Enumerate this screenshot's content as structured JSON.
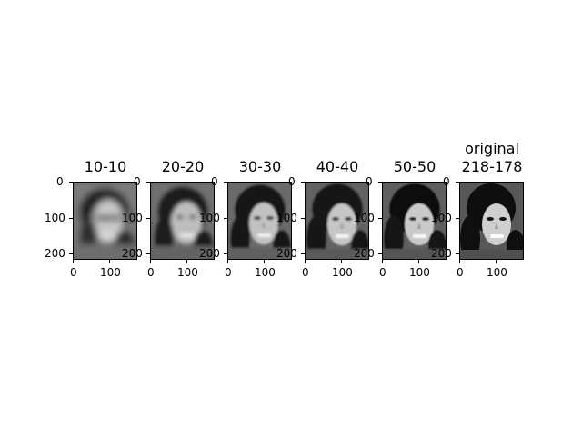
{
  "figure": {
    "panels": [
      {
        "title_line1": "",
        "title_line2": "10-10",
        "y_ticks": [
          "0",
          "100",
          "200"
        ],
        "x_ticks": [
          "0",
          "100"
        ]
      },
      {
        "title_line1": "",
        "title_line2": "20-20",
        "y_ticks": [
          "0",
          "100",
          "200"
        ],
        "x_ticks": [
          "0",
          "100"
        ]
      },
      {
        "title_line1": "",
        "title_line2": "30-30",
        "y_ticks": [
          "0",
          "100",
          "200"
        ],
        "x_ticks": [
          "0",
          "100"
        ]
      },
      {
        "title_line1": "",
        "title_line2": "40-40",
        "y_ticks": [
          "0",
          "100",
          "200"
        ],
        "x_ticks": [
          "0",
          "100"
        ]
      },
      {
        "title_line1": "",
        "title_line2": "50-50",
        "y_ticks": [
          "0",
          "100",
          "200"
        ],
        "x_ticks": [
          "0",
          "100"
        ]
      },
      {
        "title_line1": "original",
        "title_line2": "218-178",
        "y_ticks": [
          "0",
          "100",
          "200"
        ],
        "x_ticks": [
          "0",
          "100"
        ]
      }
    ]
  }
}
